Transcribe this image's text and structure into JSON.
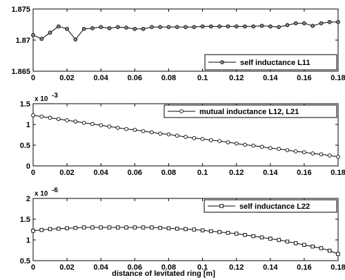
{
  "chart_data": [
    {
      "type": "line",
      "xlabel": "",
      "ylabel": "",
      "xlim": [
        0,
        0.18
      ],
      "ylim": [
        1.865,
        1.875
      ],
      "x_ticks": [
        "0",
        "0.02",
        "0.04",
        "0.06",
        "0.08",
        "0.1",
        "0.12",
        "0.14",
        "0.16",
        "0.18"
      ],
      "y_ticks": [
        "1.865",
        "1.87",
        "1.875"
      ],
      "y_exponent_label": "",
      "y_exponent_power": "",
      "marker": "circle-filled",
      "legend_position": "bottom-right",
      "series": [
        {
          "name": "self inductance L11",
          "x": [
            0,
            0.005,
            0.01,
            0.015,
            0.02,
            0.025,
            0.03,
            0.035,
            0.04,
            0.045,
            0.05,
            0.055,
            0.06,
            0.065,
            0.07,
            0.075,
            0.08,
            0.085,
            0.09,
            0.095,
            0.1,
            0.105,
            0.11,
            0.115,
            0.12,
            0.125,
            0.13,
            0.135,
            0.14,
            0.145,
            0.15,
            0.155,
            0.16,
            0.165,
            0.17,
            0.175,
            0.18
          ],
          "values": [
            1.8708,
            1.8702,
            1.8712,
            1.8722,
            1.8718,
            1.8701,
            1.8718,
            1.8719,
            1.8721,
            1.8719,
            1.8721,
            1.872,
            1.8718,
            1.8718,
            1.8721,
            1.8721,
            1.8721,
            1.8721,
            1.8721,
            1.8721,
            1.8722,
            1.8722,
            1.8722,
            1.8722,
            1.8722,
            1.8722,
            1.8722,
            1.8723,
            1.8722,
            1.8721,
            1.8724,
            1.8727,
            1.8727,
            1.8723,
            1.8727,
            1.8729,
            1.8729
          ]
        }
      ]
    },
    {
      "type": "line",
      "xlabel": "",
      "ylabel": "",
      "xlim": [
        0,
        0.18
      ],
      "ylim": [
        0,
        1.5
      ],
      "x_ticks": [
        "0",
        "0.02",
        "0.04",
        "0.06",
        "0.08",
        "0.1",
        "0.12",
        "0.14",
        "0.16",
        "0.18"
      ],
      "y_ticks": [
        "0",
        "0.5",
        "1",
        "1.5"
      ],
      "y_exponent_label": "x 10",
      "y_exponent_power": "-3",
      "marker": "circle-open",
      "legend_position": "top-right",
      "series": [
        {
          "name": "mutual inductance L12, L21",
          "x": [
            0,
            0.005,
            0.01,
            0.015,
            0.02,
            0.025,
            0.03,
            0.035,
            0.04,
            0.045,
            0.05,
            0.055,
            0.06,
            0.065,
            0.07,
            0.075,
            0.08,
            0.085,
            0.09,
            0.095,
            0.1,
            0.105,
            0.11,
            0.115,
            0.12,
            0.125,
            0.13,
            0.135,
            0.14,
            0.145,
            0.15,
            0.155,
            0.16,
            0.165,
            0.17,
            0.175,
            0.18
          ],
          "values": [
            1.22,
            1.19,
            1.16,
            1.13,
            1.1,
            1.07,
            1.04,
            1.01,
            0.98,
            0.95,
            0.92,
            0.89,
            0.87,
            0.84,
            0.81,
            0.78,
            0.76,
            0.73,
            0.7,
            0.67,
            0.65,
            0.62,
            0.6,
            0.57,
            0.54,
            0.51,
            0.49,
            0.46,
            0.43,
            0.41,
            0.38,
            0.35,
            0.33,
            0.3,
            0.28,
            0.25,
            0.22
          ]
        }
      ]
    },
    {
      "type": "line",
      "xlabel": "distance of levitated ring [m]",
      "ylabel": "",
      "xlim": [
        0,
        0.18
      ],
      "ylim": [
        0.5,
        2
      ],
      "x_ticks": [
        "0",
        "0.02",
        "0.04",
        "0.06",
        "0.08",
        "0.1",
        "0.12",
        "0.14",
        "0.16",
        "0.18"
      ],
      "y_ticks": [
        "0.5",
        "1",
        "1.5",
        "2"
      ],
      "y_exponent_label": "x 10",
      "y_exponent_power": "-6",
      "marker": "square-open",
      "legend_position": "top-right",
      "series": [
        {
          "name": "self inductance L22",
          "x": [
            0,
            0.005,
            0.01,
            0.015,
            0.02,
            0.025,
            0.03,
            0.035,
            0.04,
            0.045,
            0.05,
            0.055,
            0.06,
            0.065,
            0.07,
            0.075,
            0.08,
            0.085,
            0.09,
            0.095,
            0.1,
            0.105,
            0.11,
            0.115,
            0.12,
            0.125,
            0.13,
            0.135,
            0.14,
            0.145,
            0.15,
            0.155,
            0.16,
            0.165,
            0.17,
            0.175,
            0.18
          ],
          "values": [
            1.22,
            1.24,
            1.26,
            1.27,
            1.28,
            1.29,
            1.3,
            1.3,
            1.3,
            1.3,
            1.3,
            1.3,
            1.3,
            1.3,
            1.3,
            1.29,
            1.28,
            1.27,
            1.26,
            1.25,
            1.23,
            1.21,
            1.19,
            1.17,
            1.15,
            1.12,
            1.09,
            1.06,
            1.03,
            1.0,
            0.96,
            0.92,
            0.88,
            0.84,
            0.8,
            0.74,
            0.66
          ]
        }
      ]
    }
  ]
}
